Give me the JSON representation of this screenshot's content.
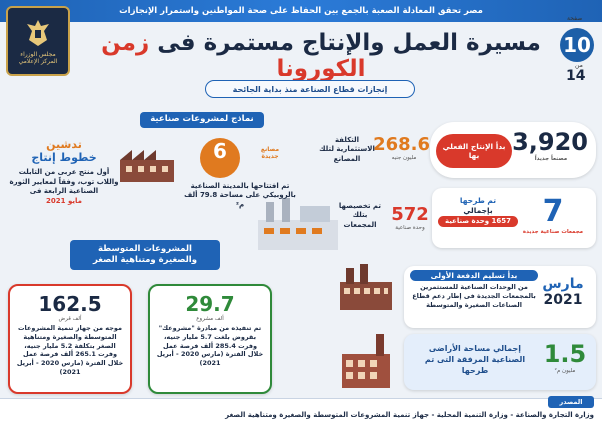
{
  "header": {
    "top_banner": "مصر تحقق المعادلة الصعبة بالجمع بين الحفاظ على صحة المواطنين واستمرار الإنجازات",
    "issue_label": "صفحة",
    "issue_number": "10",
    "issue_of": "من",
    "issue_total": "14",
    "title_main": "مسيرة العمل والإنتاج مستمرة فى",
    "title_highlight": "زمن الكورونا",
    "subtitle": "إنجازات قطاع الصناعة منذ بداية الجائحة",
    "logo_line1": "مجلس الوزراء",
    "logo_line2": "المركز الإعلامي"
  },
  "right_stats": {
    "production_start": {
      "value": "3,920",
      "unit": "مصنعاً جديداً",
      "label": "بدأ الإنتاج الفعلي بها"
    },
    "investment": {
      "value": "268.6",
      "unit": "مليون جنيه",
      "label": "التكلفة الاستثمارية لتلك المصانع"
    },
    "complexes": {
      "value": "7",
      "unit": "مجمعات صناعية جديدة",
      "label_line1": "تم طرحها",
      "label_line2": "بإجمالي",
      "label_line3": "1657 وحدة صناعية"
    },
    "units_allocated": {
      "value": "572",
      "unit": "وحدة صناعية",
      "label": "تم تخصيصها بتلك المجمعات"
    },
    "delivery": {
      "month": "مارس",
      "year": "2021",
      "label_line1": "بدأ تسليم الدفعة الأولى",
      "label_line2": "من الوحدات الصناعية للمستثمرين بالمجمعات الجديدة فى إطار دعم قطاع الصناعات الصغيرة والمتوسطة"
    },
    "land": {
      "value": "1.5",
      "unit": "مليون م²",
      "label": "إجمالي مساحة الأراضى الصناعية المرفقة التى تم طرحها"
    }
  },
  "left_sections": {
    "models_tab": "نماذج لمشروعات صناعية",
    "factories": {
      "value": "6",
      "unit_line1": "مصانع",
      "unit_line2": "جديدة",
      "label": "تم افتتاحها بالمدينة الصناعية بالروبيكي على مساحة 79.8 ألف م²"
    },
    "production_lines": {
      "title_line1": "تدشين",
      "title_line2": "خطوط إنتاج",
      "label": "أول منتج عربى من التابلت واللاب توب، وفقاً لمعايير الثورة الصناعية الرابعة فى",
      "date": "مايو 2021"
    },
    "sme_tab_line1": "المشروعات المتوسطة",
    "sme_tab_line2": "والصغيرة ومتناهية الصغر",
    "projects": {
      "value": "29.7",
      "unit": "ألف مشروع",
      "label": "تم تنفيذه من مبادرة \"مشروعك\" بقروض بلغت 5.7 مليار جنيه، وفرت 285.4 ألف فرصة عمل خلال الفترة (مارس 2020 - أبريل 2021)"
    },
    "loans": {
      "value": "162.5",
      "unit": "ألف قرض",
      "label": "موجه من جهاز تنمية المشروعات المتوسطة والصغيرة ومتناهية الصغر بتكلفة 5.2 مليار جنيه، وفرت 265.1 ألف فرصة عمل خلال الفترة (مارس 2020 - أبريل 2021)"
    }
  },
  "footer": {
    "source_label": "المصدر",
    "source_text": "وزارة التجارة والصناعة - وزارة التنمية المحلية - جهاز تنمية المشروعات المتوسطة والصغيرة ومتناهية الصغر"
  },
  "colors": {
    "primary_blue": "#1f63b5",
    "navy": "#1b2a44",
    "red": "#d9392b",
    "orange": "#e07a1f",
    "green": "#2f8a3a"
  }
}
